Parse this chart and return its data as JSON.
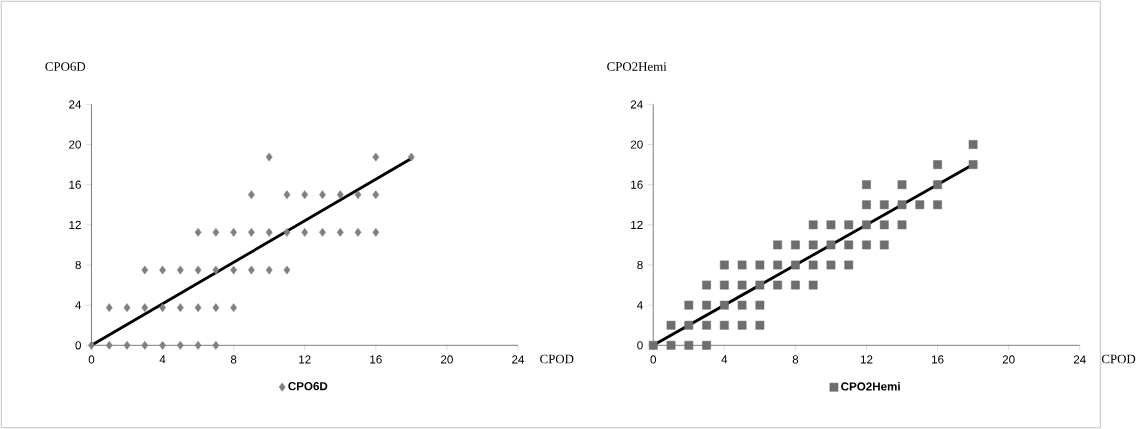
{
  "chart_data": [
    {
      "type": "scatter",
      "ylabel": "CPO6D",
      "xlabel": "CPOD",
      "marker": "diamond",
      "legend": "bottom",
      "xlim": [
        0,
        24
      ],
      "ylim": [
        0,
        24
      ],
      "xticks": [
        0,
        4,
        8,
        12,
        16,
        20,
        24
      ],
      "yticks": [
        0,
        4,
        8,
        12,
        16,
        20,
        24
      ],
      "series": [
        {
          "name": "CPO6D",
          "color": "#808080",
          "x": [
            0,
            1,
            2,
            3,
            4,
            5,
            6,
            7,
            1,
            2,
            3,
            4,
            5,
            6,
            7,
            8,
            3,
            4,
            5,
            6,
            7,
            8,
            9,
            10,
            11,
            6,
            7,
            8,
            9,
            10,
            11,
            12,
            13,
            14,
            15,
            16,
            9,
            11,
            12,
            13,
            14,
            15,
            16,
            10,
            16,
            18
          ],
          "values": [
            0,
            0,
            0,
            0,
            0,
            0,
            0,
            0,
            3.75,
            3.75,
            3.75,
            3.75,
            3.75,
            3.75,
            3.75,
            3.75,
            7.5,
            7.5,
            7.5,
            7.5,
            7.5,
            7.5,
            7.5,
            7.5,
            7.5,
            11.25,
            11.25,
            11.25,
            11.25,
            11.25,
            11.25,
            11.25,
            11.25,
            11.25,
            11.25,
            11.25,
            15,
            15,
            15,
            15,
            15,
            15,
            15,
            18.75,
            18.75,
            18.75
          ]
        },
        {
          "type": "line",
          "marker": "none",
          "color": "#000000",
          "x": [
            0,
            18
          ],
          "values": [
            0,
            18.6
          ]
        }
      ]
    },
    {
      "type": "scatter",
      "ylabel": "CPO2Hemi",
      "xlabel": "CPOD",
      "marker": "square",
      "legend": "bottom",
      "xlim": [
        0,
        24
      ],
      "ylim": [
        0,
        24
      ],
      "xticks": [
        0,
        4,
        8,
        12,
        16,
        20,
        24
      ],
      "yticks": [
        0,
        4,
        8,
        12,
        16,
        20,
        24
      ],
      "series": [
        {
          "name": "CPO2Hemi",
          "color": "#6e6e6e",
          "x": [
            0,
            1,
            2,
            3,
            1,
            2,
            3,
            4,
            5,
            6,
            2,
            3,
            4,
            5,
            6,
            3,
            4,
            5,
            6,
            7,
            8,
            9,
            4,
            5,
            6,
            7,
            8,
            9,
            10,
            11,
            7,
            8,
            9,
            10,
            11,
            12,
            13,
            9,
            10,
            11,
            12,
            13,
            14,
            12,
            13,
            14,
            15,
            16,
            12,
            14,
            16,
            16,
            18,
            18
          ],
          "values": [
            0,
            0,
            0,
            0,
            2,
            2,
            2,
            2,
            2,
            2,
            4,
            4,
            4,
            4,
            4,
            6,
            6,
            6,
            6,
            6,
            6,
            6,
            8,
            8,
            8,
            8,
            8,
            8,
            8,
            8,
            10,
            10,
            10,
            10,
            10,
            10,
            10,
            12,
            12,
            12,
            12,
            12,
            12,
            14,
            14,
            14,
            14,
            14,
            16,
            16,
            16,
            18,
            18,
            20
          ]
        },
        {
          "type": "line",
          "marker": "none",
          "color": "#000000",
          "x": [
            0,
            18
          ],
          "values": [
            0,
            18
          ]
        }
      ]
    }
  ]
}
